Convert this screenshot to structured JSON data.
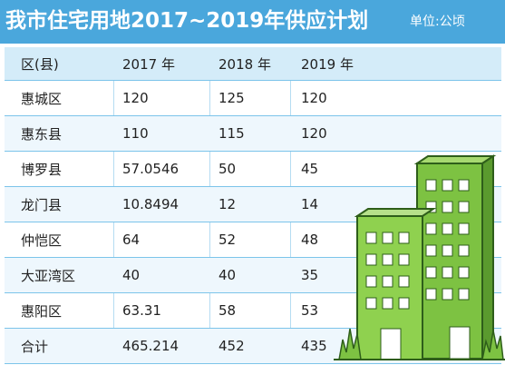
{
  "title": "我市住宅用地2017~2019年供应计划",
  "unit": "单位:公顷",
  "table": {
    "headers": [
      "区(县)",
      "2017 年",
      "2018 年",
      "2019 年"
    ],
    "rows": [
      [
        "惠城区",
        "120",
        "125",
        "120"
      ],
      [
        "惠东县",
        "110",
        "115",
        "120"
      ],
      [
        "博罗县",
        "57.0546",
        "50",
        "45"
      ],
      [
        "龙门县",
        "10.8494",
        "12",
        "14"
      ],
      [
        "仲恺区",
        "64",
        "52",
        "48"
      ],
      [
        "大亚湾区",
        "40",
        "40",
        "35"
      ],
      [
        "惠阳区",
        "63.31",
        "58",
        "53"
      ],
      [
        "合计",
        "465.214",
        "452",
        "435"
      ]
    ]
  },
  "colors": {
    "title_bar": "#4aa7dc",
    "header_row": "#d4ecf9",
    "building": "#7dc242"
  },
  "illustration": "green-buildings-icon"
}
